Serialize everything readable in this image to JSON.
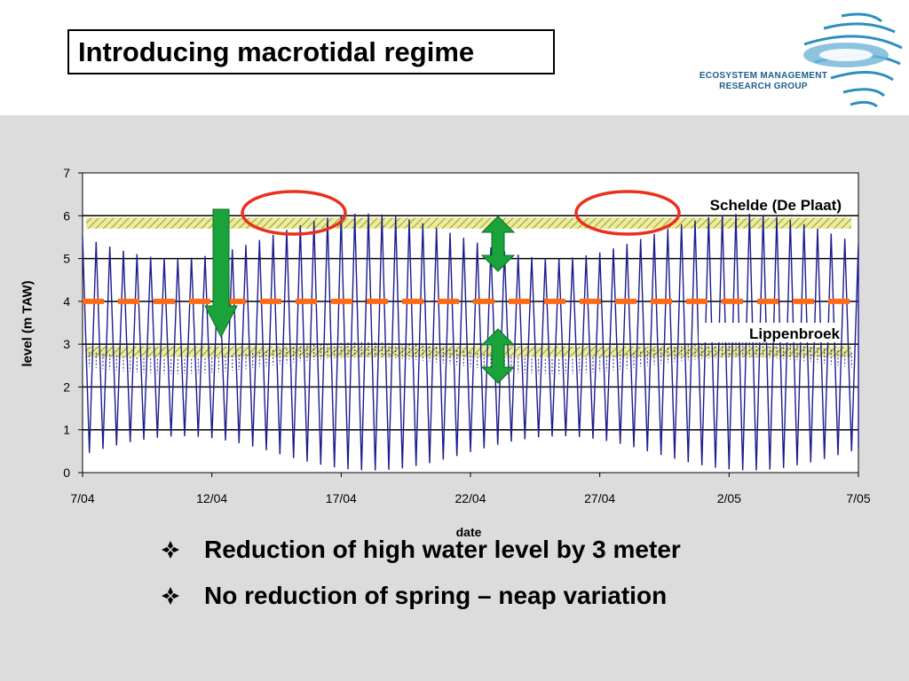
{
  "slide": {
    "title": "Introducing macrotidal regime",
    "logo_line1": "ECOSYSTEM MANAGEMENT",
    "logo_line2": "RESEARCH GROUP",
    "bullets": [
      "Reduction of high water level by 3 meter",
      "No reduction of spring – neap variation"
    ]
  },
  "chart_data": {
    "type": "line",
    "title": "",
    "xlabel": "date",
    "ylabel": "level (m TAW)",
    "ylim": [
      0,
      7
    ],
    "yticks": [
      0,
      1,
      2,
      3,
      4,
      5,
      6,
      7
    ],
    "xticks": [
      "7/04",
      "12/04",
      "17/04",
      "22/04",
      "27/04",
      "2/05",
      "7/05"
    ],
    "grid": "horizontal",
    "line_color": "#1c1c8c",
    "series": [
      {
        "name": "Schelde (De Plaat)",
        "description_high_water_range": [
          5.0,
          6.1
        ],
        "low_water_range": [
          0.0,
          1.0
        ]
      },
      {
        "name": "Lippenbroek",
        "high_water_range": [
          2.6,
          3.1
        ],
        "low_water_floor": 0.0
      }
    ],
    "annotations": {
      "reference_line_y": 4.0,
      "reference_line_color": "#ff6a13",
      "band_upper": [
        5.7,
        5.95
      ],
      "band_lower": [
        2.7,
        2.95
      ]
    }
  }
}
